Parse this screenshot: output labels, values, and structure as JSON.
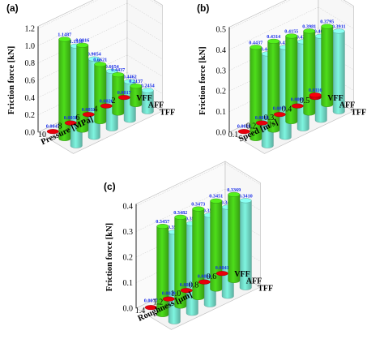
{
  "chart_data": [
    {
      "type": "bar3d",
      "panel": "(a)",
      "ylabel": "Friction force [kN]",
      "xlabel": "Pressure [MPa]",
      "x_ticks": [
        "10",
        "8",
        "6",
        "4",
        "2"
      ],
      "yticks": [
        "0.0",
        "0.2",
        "0.4",
        "0.6",
        "0.8",
        "1.0",
        "1.2"
      ],
      "ylim": [
        0,
        1.2
      ],
      "series": [
        {
          "name": "VFF",
          "color": "#e8000b",
          "values": [
            0.0047,
            0.0038,
            0.0033,
            0.0026,
            0.0017
          ],
          "labels": [
            "0.0047",
            "0.0038",
            "0.0033",
            "0.0026",
            "0.0017"
          ]
        },
        {
          "name": "AFF",
          "color": "#4dde1a",
          "values": [
            1.1487,
            0.9816,
            0.6621,
            0.4437,
            0.2137
          ],
          "labels": [
            "1.1487",
            "0.9816",
            "0.6621",
            "0.4437",
            "0.2137"
          ]
        },
        {
          "name": "TFF",
          "color": "#7ff5e0",
          "values": [
            1.153,
            0.9054,
            0.6654,
            0.4462,
            0.2454
          ],
          "labels": [
            "1.1530",
            "0.9054",
            "0.6654",
            "0.4462",
            "0.2454"
          ]
        }
      ]
    },
    {
      "type": "bar3d",
      "panel": "(b)",
      "ylabel": "Friction force [kN]",
      "xlabel": "Speed [m/s]",
      "x_ticks": [
        "0.1",
        "0.2",
        "0.3",
        "0.4",
        "0.5"
      ],
      "yticks": [
        "0.0",
        "0.1",
        "0.2",
        "0.3",
        "0.4",
        "0.5"
      ],
      "ylim": [
        0,
        0.5
      ],
      "series": [
        {
          "name": "VFF",
          "color": "#e8000b",
          "values": [
            0.0026,
            0.0018,
            0.0071,
            0.0091,
            0.0116
          ],
          "labels": [
            "0.0026",
            "0.0018",
            "0.0071",
            "0.0091",
            "0.0116"
          ]
        },
        {
          "name": "AFF",
          "color": "#4dde1a",
          "values": [
            0.4437,
            0.4314,
            0.4155,
            0.3981,
            0.3795
          ],
          "labels": [
            "0.4437",
            "0.4314",
            "0.4155",
            "0.3981",
            "0.3795"
          ]
        },
        {
          "name": "TFF",
          "color": "#7ff5e0",
          "values": [
            0.4462,
            0.4362,
            0.4225,
            0.4075,
            0.3911
          ],
          "labels": [
            "0.4462",
            "0.4362",
            "0.4225",
            "0.4075",
            "0.3911"
          ]
        }
      ]
    },
    {
      "type": "bar3d",
      "panel": "(c)",
      "ylabel": "Friction force [kN]",
      "xlabel": "Roughness [μm]",
      "x_ticks": [
        "1.4",
        "1.2",
        "1.0",
        "0.8",
        "0.6"
      ],
      "yticks": [
        "0.0",
        "0.1",
        "0.2",
        "0.3",
        "0.4"
      ],
      "ylim": [
        0,
        0.4
      ],
      "series": [
        {
          "name": "VFF",
          "color": "#e8000b",
          "values": [
            0.0077,
            0.0029,
            0.0031,
            0.0034,
            0.0041
          ],
          "labels": [
            "0.0077",
            "0.0029",
            "0.0031",
            "0.0034",
            "0.0041"
          ]
        },
        {
          "name": "AFF",
          "color": "#4dde1a",
          "values": [
            0.3457,
            0.3482,
            0.3473,
            0.3451,
            0.3369
          ],
          "labels": [
            "0.3457",
            "0.3482",
            "0.3473",
            "0.3451",
            "0.3369"
          ]
        },
        {
          "name": "TFF",
          "color": "#7ff5e0",
          "values": [
            0.3511,
            0.3511,
            0.3504,
            0.3485,
            0.341
          ],
          "labels": [
            "0.3511",
            "0.3511",
            "0.3504",
            "0.3485",
            "0.3410"
          ]
        }
      ]
    }
  ]
}
